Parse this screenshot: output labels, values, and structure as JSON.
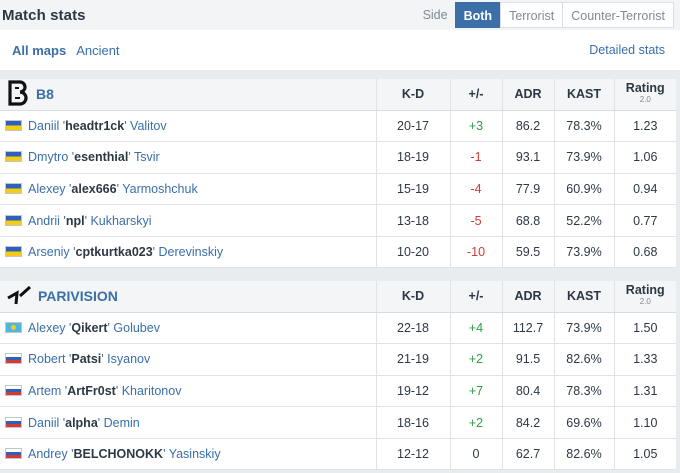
{
  "header": {
    "title": "Match stats",
    "side_label": "Side",
    "tabs": [
      {
        "label": "Both",
        "active": true
      },
      {
        "label": "Terrorist",
        "active": false
      },
      {
        "label": "Counter-Terrorist",
        "active": false
      }
    ]
  },
  "mapbar": {
    "maps": [
      {
        "label": "All maps",
        "selected": true
      },
      {
        "label": "Ancient",
        "selected": false
      }
    ],
    "detailed_link": "Detailed stats"
  },
  "columns": {
    "kd": "K-D",
    "pm": "+/-",
    "adr": "ADR",
    "kast": "KAST",
    "rating": "Rating",
    "rating_ver": "2.0"
  },
  "teams": [
    {
      "name": "B8",
      "logo": "b8-logo-icon",
      "players": [
        {
          "flag": "ua",
          "first": "Daniil '",
          "nick": "headtr1ck",
          "last": "' Valitov",
          "kd": "20-17",
          "pm": "+3",
          "pm_sign": "pos",
          "adr": "86.2",
          "kast": "78.3%",
          "rating": "1.23"
        },
        {
          "flag": "ua",
          "first": "Dmytro '",
          "nick": "esenthial",
          "last": "' Tsvir",
          "kd": "18-19",
          "pm": "-1",
          "pm_sign": "neg",
          "adr": "93.1",
          "kast": "73.9%",
          "rating": "1.06"
        },
        {
          "flag": "ua",
          "first": "Alexey '",
          "nick": "alex666",
          "last": "' Yarmoshchuk",
          "kd": "15-19",
          "pm": "-4",
          "pm_sign": "neg",
          "adr": "77.9",
          "kast": "60.9%",
          "rating": "0.94"
        },
        {
          "flag": "ua",
          "first": "Andrii '",
          "nick": "npl",
          "last": "' Kukharskyi",
          "kd": "13-18",
          "pm": "-5",
          "pm_sign": "neg",
          "adr": "68.8",
          "kast": "52.2%",
          "rating": "0.77"
        },
        {
          "flag": "ua",
          "first": "Arseniy '",
          "nick": "cptkurtka023",
          "last": "' Derevinskiy",
          "kd": "10-20",
          "pm": "-10",
          "pm_sign": "neg",
          "adr": "59.5",
          "kast": "73.9%",
          "rating": "0.68"
        }
      ]
    },
    {
      "name": "PARIVISION",
      "logo": "parivision-logo-icon",
      "players": [
        {
          "flag": "kz",
          "first": "Alexey '",
          "nick": "Qikert",
          "last": "' Golubev",
          "kd": "22-18",
          "pm": "+4",
          "pm_sign": "pos",
          "adr": "112.7",
          "kast": "73.9%",
          "rating": "1.50"
        },
        {
          "flag": "ru",
          "first": "Robert '",
          "nick": "Patsi",
          "last": "' Isyanov",
          "kd": "21-19",
          "pm": "+2",
          "pm_sign": "pos",
          "adr": "91.5",
          "kast": "82.6%",
          "rating": "1.33"
        },
        {
          "flag": "ru",
          "first": "Artem '",
          "nick": "ArtFr0st",
          "last": "' Kharitonov",
          "kd": "19-12",
          "pm": "+7",
          "pm_sign": "pos",
          "adr": "80.4",
          "kast": "78.3%",
          "rating": "1.31"
        },
        {
          "flag": "ru",
          "first": "Daniil '",
          "nick": "alpha",
          "last": "' Demin",
          "kd": "18-16",
          "pm": "+2",
          "pm_sign": "pos",
          "adr": "84.2",
          "kast": "69.6%",
          "rating": "1.10"
        },
        {
          "flag": "ru",
          "first": "Andrey '",
          "nick": "BELCHONOKK",
          "last": "' Yasinskiy",
          "kd": "12-12",
          "pm": "0",
          "pm_sign": "zero",
          "adr": "62.7",
          "kast": "82.6%",
          "rating": "1.05"
        }
      ]
    }
  ],
  "colors": {
    "accent": "#3a6fa8",
    "positive": "#2e9e44",
    "negative": "#d63a35"
  }
}
